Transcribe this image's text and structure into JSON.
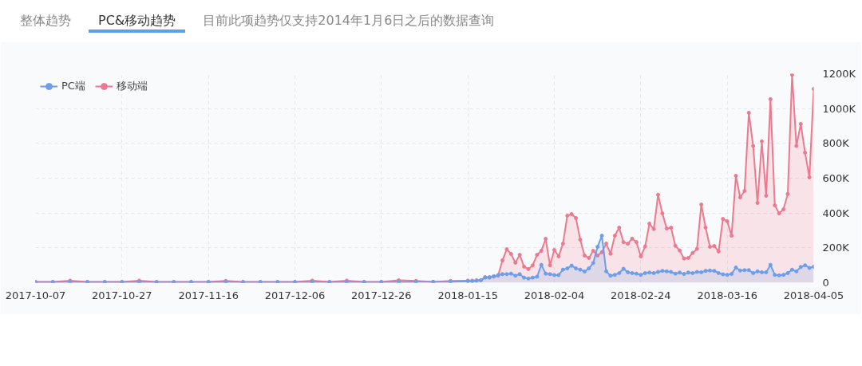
{
  "chart_data": {
    "type": "area",
    "title": "PC&移动趋势",
    "annotations": [
      "整体趋势",
      "目前此项趋势仅支持2014年1月6日之后的数据查询"
    ],
    "x": [
      "2017-10-07",
      "2017-10-11",
      "2017-10-15",
      "2017-10-19",
      "2017-10-23",
      "2017-10-27",
      "2017-10-31",
      "2017-11-04",
      "2017-11-08",
      "2017-11-12",
      "2017-11-16",
      "2017-11-20",
      "2017-11-24",
      "2017-11-28",
      "2017-12-02",
      "2017-12-06",
      "2017-12-10",
      "2017-12-14",
      "2017-12-18",
      "2017-12-22",
      "2017-12-26",
      "2017-12-30",
      "2018-01-03",
      "2018-01-07",
      "2018-01-11",
      "2018-01-15",
      "2018-01-16",
      "2018-01-17",
      "2018-01-18",
      "2018-01-19",
      "2018-01-20",
      "2018-01-21",
      "2018-01-22",
      "2018-01-23",
      "2018-01-24",
      "2018-01-25",
      "2018-01-26",
      "2018-01-27",
      "2018-01-28",
      "2018-01-29",
      "2018-01-30",
      "2018-01-31",
      "2018-02-01",
      "2018-02-02",
      "2018-02-03",
      "2018-02-04",
      "2018-02-05",
      "2018-02-06",
      "2018-02-07",
      "2018-02-08",
      "2018-02-09",
      "2018-02-10",
      "2018-02-11",
      "2018-02-12",
      "2018-02-13",
      "2018-02-14",
      "2018-02-15",
      "2018-02-16",
      "2018-02-17",
      "2018-02-18",
      "2018-02-19",
      "2018-02-20",
      "2018-02-21",
      "2018-02-22",
      "2018-02-23",
      "2018-02-24",
      "2018-02-25",
      "2018-02-26",
      "2018-02-27",
      "2018-02-28",
      "2018-03-01",
      "2018-03-02",
      "2018-03-03",
      "2018-03-04",
      "2018-03-05",
      "2018-03-06",
      "2018-03-07",
      "2018-03-08",
      "2018-03-09",
      "2018-03-10",
      "2018-03-11",
      "2018-03-12",
      "2018-03-13",
      "2018-03-14",
      "2018-03-15",
      "2018-03-16",
      "2018-03-17",
      "2018-03-18",
      "2018-03-19",
      "2018-03-20",
      "2018-03-21",
      "2018-03-22",
      "2018-03-23",
      "2018-03-24",
      "2018-03-25",
      "2018-03-26",
      "2018-03-27",
      "2018-03-28",
      "2018-03-29",
      "2018-03-30",
      "2018-03-31",
      "2018-04-01",
      "2018-04-02",
      "2018-04-03",
      "2018-04-04",
      "2018-04-05"
    ],
    "series": [
      {
        "name": "PC端",
        "color": "#6d9eeb",
        "values": [
          3000,
          3000,
          3000,
          3000,
          3000,
          3000,
          3000,
          3000,
          3000,
          3000,
          3000,
          3000,
          3000,
          3000,
          3000,
          3000,
          3000,
          3000,
          3000,
          3000,
          3000,
          3000,
          5000,
          5000,
          5000,
          8000,
          8000,
          10000,
          14000,
          29000,
          29000,
          37000,
          44000,
          49000,
          49000,
          52000,
          40000,
          49000,
          29000,
          24000,
          29000,
          34000,
          102000,
          52000,
          49000,
          44000,
          44000,
          75000,
          82000,
          98000,
          82000,
          75000,
          64000,
          82000,
          113000,
          206000,
          270000,
          65000,
          40000,
          45000,
          55000,
          80000,
          60000,
          55000,
          52000,
          45000,
          55000,
          58000,
          55000,
          62000,
          68000,
          65000,
          62000,
          52000,
          58000,
          50000,
          58000,
          55000,
          62000,
          60000,
          68000,
          70000,
          68000,
          55000,
          48000,
          45000,
          50000,
          87000,
          70000,
          72000,
          72000,
          55000,
          65000,
          60000,
          60000,
          102000,
          45000,
          42000,
          45000,
          55000,
          75000,
          65000,
          90000,
          100000,
          85000,
          92000
        ]
      },
      {
        "name": "移动端",
        "color": "#ec7a8f",
        "values": [
          5000,
          5000,
          12000,
          5000,
          5000,
          5000,
          12000,
          5000,
          5000,
          5000,
          5000,
          10000,
          5000,
          5000,
          5000,
          5000,
          12000,
          5000,
          12000,
          5000,
          5000,
          14000,
          10000,
          5000,
          10000,
          12000,
          12000,
          14000,
          14000,
          32000,
          32000,
          35000,
          40000,
          128000,
          192000,
          165000,
          115000,
          160000,
          92000,
          78000,
          100000,
          160000,
          183000,
          252000,
          100000,
          188000,
          151000,
          224000,
          385000,
          394000,
          371000,
          247000,
          156000,
          142000,
          183000,
          156000,
          175000,
          225000,
          166000,
          270000,
          316000,
          233000,
          224000,
          253000,
          233000,
          151000,
          208000,
          339000,
          308000,
          505000,
          398000,
          311000,
          316000,
          212000,
          185000,
          139000,
          142000,
          171000,
          194000,
          449000,
          316000,
          206000,
          211000,
          179000,
          366000,
          353000,
          270000,
          614000,
          490000,
          527000,
          976000,
          785000,
          458000,
          812000,
          499000,
          1054000,
          444000,
          398000,
          421000,
          510000,
          1194000,
          785000,
          912000,
          747000,
          605000,
          1113000
        ]
      }
    ],
    "xlim": [
      "2017-10-07",
      "2018-04-05"
    ],
    "xticks": [
      "2017-10-07",
      "2017-10-27",
      "2017-11-16",
      "2017-12-06",
      "2017-12-26",
      "2018-01-15",
      "2018-02-04",
      "2018-02-24",
      "2018-03-16",
      "2018-04-05"
    ],
    "ylim": [
      0,
      1200000
    ],
    "yticks": [
      0,
      {
        "value": 200000,
        "label": "200K"
      },
      {
        "value": 400000,
        "label": "400K"
      },
      {
        "value": 600000,
        "label": "600K"
      },
      {
        "value": 800000,
        "label": "800K"
      },
      {
        "value": 1000000,
        "label": "1000K"
      },
      {
        "value": 1200000,
        "label": "1200K"
      }
    ],
    "grid": true,
    "legend": "top left",
    "marker": "circle",
    "line_style": "solid"
  }
}
